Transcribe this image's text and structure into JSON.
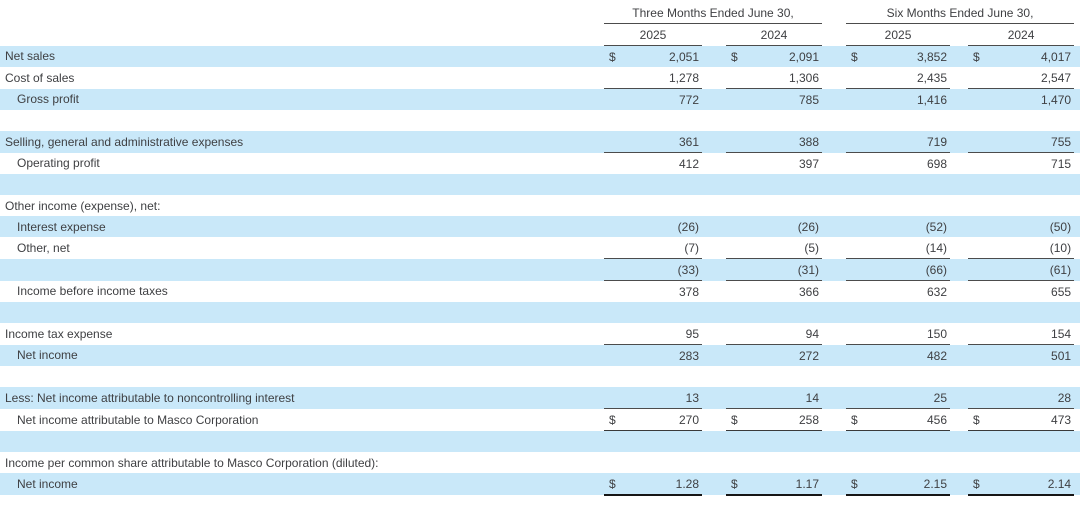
{
  "table": {
    "header": {
      "three_months": "Three Months Ended June 30,",
      "six_months": "Six Months Ended June 30,",
      "years": [
        "2025",
        "2024",
        "2025",
        "2024"
      ]
    },
    "colors": {
      "row_shade": "#c9e8f9",
      "text": "#3f4043",
      "rule_thin": "#4c4c4c",
      "rule_thick": "#161616"
    },
    "rows": [
      {
        "label": "Net sales",
        "indent": 0,
        "shaded": true,
        "syms": [
          "$",
          "$",
          "$",
          "$"
        ],
        "vals": [
          "2,051",
          "2,091",
          "3,852",
          "4,017"
        ],
        "border": "none"
      },
      {
        "label": "Cost of sales",
        "indent": 0,
        "shaded": false,
        "syms": [
          "",
          "",
          "",
          ""
        ],
        "vals": [
          "1,278",
          "1,306",
          "2,435",
          "2,547"
        ],
        "border": "none"
      },
      {
        "label": "Gross profit",
        "indent": 1,
        "shaded": true,
        "syms": [
          "",
          "",
          "",
          ""
        ],
        "vals": [
          "772",
          "785",
          "1,416",
          "1,470"
        ],
        "border": "top"
      },
      {
        "label": "",
        "indent": 0,
        "shaded": false,
        "syms": null,
        "vals": null,
        "border": "none"
      },
      {
        "label": "Selling, general and administrative expenses",
        "indent": 0,
        "shaded": true,
        "syms": [
          "",
          "",
          "",
          ""
        ],
        "vals": [
          "361",
          "388",
          "719",
          "755"
        ],
        "border": "none"
      },
      {
        "label": "Operating profit",
        "indent": 1,
        "shaded": false,
        "syms": [
          "",
          "",
          "",
          ""
        ],
        "vals": [
          "412",
          "397",
          "698",
          "715"
        ],
        "border": "top"
      },
      {
        "label": "",
        "indent": 0,
        "shaded": true,
        "syms": null,
        "vals": null,
        "border": "none"
      },
      {
        "label": "Other income (expense), net:",
        "indent": 0,
        "shaded": false,
        "syms": null,
        "vals": null,
        "border": "none"
      },
      {
        "label": "Interest expense",
        "indent": 1,
        "shaded": true,
        "syms": [
          "",
          "",
          "",
          ""
        ],
        "vals": [
          "(26)",
          "(26)",
          "(52)",
          "(50)"
        ],
        "border": "none"
      },
      {
        "label": "Other, net",
        "indent": 1,
        "shaded": false,
        "syms": [
          "",
          "",
          "",
          ""
        ],
        "vals": [
          "(7)",
          "(5)",
          "(14)",
          "(10)"
        ],
        "border": "none"
      },
      {
        "label": "",
        "indent": 0,
        "shaded": true,
        "syms": [
          "",
          "",
          "",
          ""
        ],
        "vals": [
          "(33)",
          "(31)",
          "(66)",
          "(61)"
        ],
        "border": "top"
      },
      {
        "label": "Income before income taxes",
        "indent": 1,
        "shaded": false,
        "syms": [
          "",
          "",
          "",
          ""
        ],
        "vals": [
          "378",
          "366",
          "632",
          "655"
        ],
        "border": "top"
      },
      {
        "label": "",
        "indent": 0,
        "shaded": true,
        "syms": null,
        "vals": null,
        "border": "none"
      },
      {
        "label": "Income tax expense",
        "indent": 0,
        "shaded": false,
        "syms": [
          "",
          "",
          "",
          ""
        ],
        "vals": [
          "95",
          "94",
          "150",
          "154"
        ],
        "border": "none"
      },
      {
        "label": "Net income",
        "indent": 1,
        "shaded": true,
        "syms": [
          "",
          "",
          "",
          ""
        ],
        "vals": [
          "283",
          "272",
          "482",
          "501"
        ],
        "border": "top"
      },
      {
        "label": "",
        "indent": 0,
        "shaded": false,
        "syms": null,
        "vals": null,
        "border": "none"
      },
      {
        "label": "Less: Net income attributable to noncontrolling interest",
        "indent": 0,
        "shaded": true,
        "syms": [
          "",
          "",
          "",
          ""
        ],
        "vals": [
          "13",
          "14",
          "25",
          "28"
        ],
        "border": "none"
      },
      {
        "label": "Net income attributable to Masco Corporation",
        "indent": 1,
        "shaded": false,
        "syms": [
          "$",
          "$",
          "$",
          "$"
        ],
        "vals": [
          "270",
          "258",
          "456",
          "473"
        ],
        "border": "top-bottom"
      },
      {
        "label": "",
        "indent": 0,
        "shaded": true,
        "syms": [
          "",
          "",
          "",
          ""
        ],
        "vals": [
          "",
          "",
          "",
          ""
        ],
        "border": "under2"
      },
      {
        "label": "Income per common share attributable to Masco Corporation (diluted):",
        "indent": 0,
        "shaded": false,
        "syms": null,
        "vals": null,
        "border": "none"
      },
      {
        "label": "Net income",
        "indent": 1,
        "shaded": true,
        "syms": [
          "$",
          "$",
          "$",
          "$"
        ],
        "vals": [
          "1.28",
          "1.17",
          "2.15",
          "2.14"
        ],
        "border": "final"
      }
    ]
  }
}
